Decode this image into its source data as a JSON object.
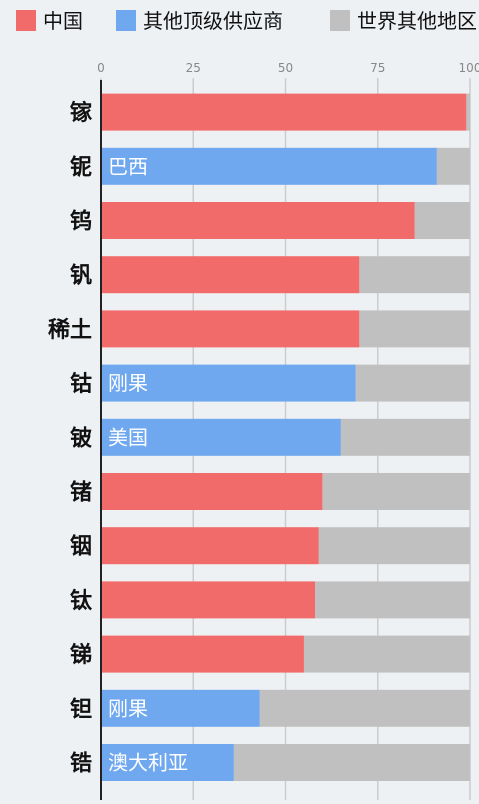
{
  "chart_data": {
    "type": "bar",
    "orientation": "horizontal",
    "stacked": true,
    "legend": {
      "placement": "top",
      "entries": [
        {
          "name": "中国",
          "color": "#f26b6b"
        },
        {
          "name": "其他顶级供应商",
          "color": "#6fa8ef"
        },
        {
          "name": "世界其他地区",
          "color": "#c0c0c0"
        }
      ]
    },
    "xlim": [
      0,
      100
    ],
    "x_ticks": [
      0,
      25,
      50,
      75,
      100
    ],
    "grid": true,
    "categories": [
      "镓",
      "铌",
      "钨",
      "钒",
      "稀土",
      "钴",
      "铍",
      "锗",
      "铟",
      "钛",
      "锑",
      "钽",
      "锆"
    ],
    "top_supplier": [
      "中国",
      "巴西",
      "中国",
      "中国",
      "中国",
      "刚果",
      "美国",
      "中国",
      "中国",
      "中国",
      "中国",
      "刚果",
      "澳大利亚"
    ],
    "values": [
      99,
      91,
      85,
      70,
      70,
      69,
      65,
      60,
      59,
      58,
      55,
      43,
      36
    ],
    "colors": {
      "china": "#f26b6b",
      "other_top": "#6fa8ef",
      "rest": "#c0c0c0",
      "grid": "#cccccc",
      "axis": "#222222",
      "tick_text": "#888888",
      "label_text": "#111111",
      "bar_label_text": "#ffffff"
    }
  }
}
